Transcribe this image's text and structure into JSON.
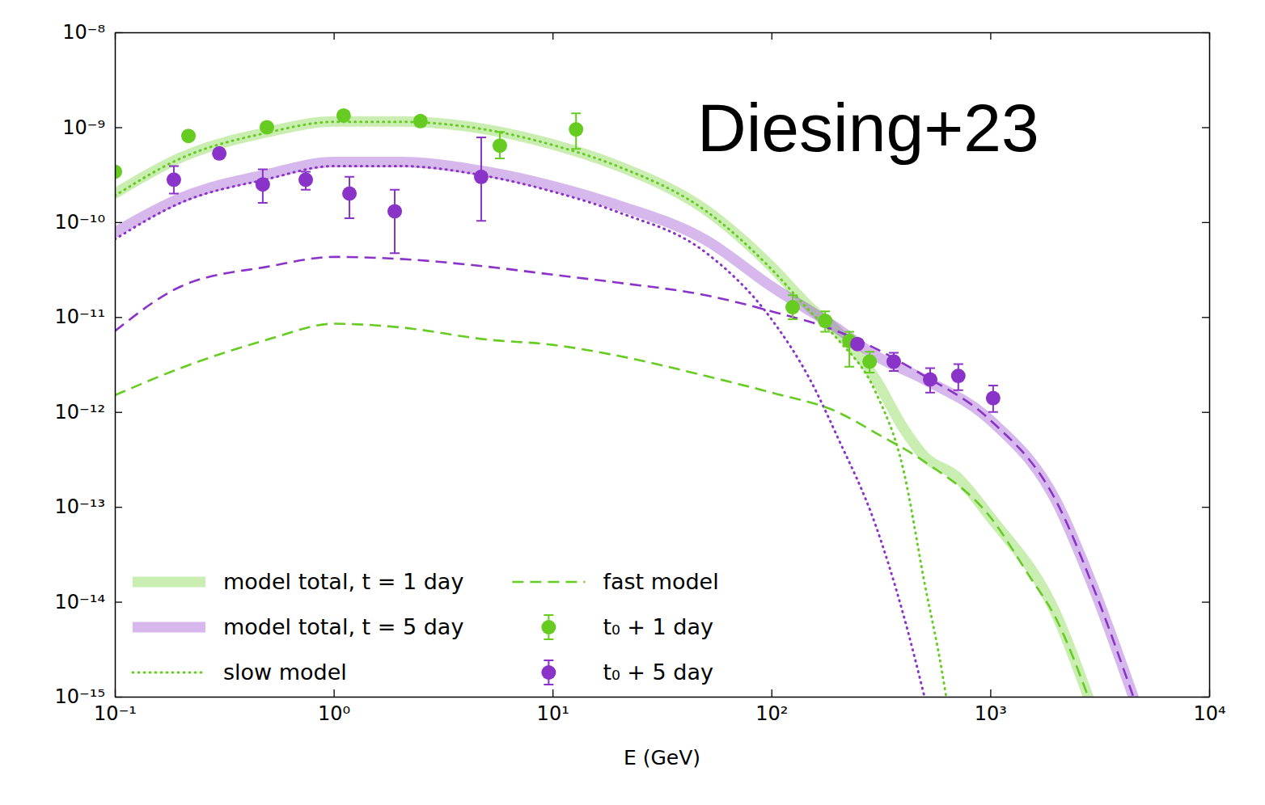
{
  "chart_data": {
    "type": "line",
    "annotations": [
      "Diesing+23"
    ],
    "x_label": "E (GeV)",
    "log": true,
    "xlim": [
      0.1,
      10000
    ],
    "ylim": [
      1e-15,
      1e-08
    ],
    "xticks": [
      {
        "value": 0.1,
        "label": "10⁻¹"
      },
      {
        "value": 1,
        "label": "10⁰"
      },
      {
        "value": 10,
        "label": "10¹"
      },
      {
        "value": 100,
        "label": "10²"
      },
      {
        "value": 1000,
        "label": "10³"
      },
      {
        "value": 10000,
        "label": "10⁴"
      }
    ],
    "yticks": [
      {
        "value": 1e-15,
        "label": "10⁻¹⁵"
      },
      {
        "value": 1e-14,
        "label": "10⁻¹⁴"
      },
      {
        "value": 1e-13,
        "label": "10⁻¹³"
      },
      {
        "value": 1e-12,
        "label": "10⁻¹²"
      },
      {
        "value": 1e-11,
        "label": "10⁻¹¹"
      },
      {
        "value": 1e-10,
        "label": "10⁻¹⁰"
      },
      {
        "value": 1e-09,
        "label": "10⁻⁹"
      },
      {
        "value": 1e-08,
        "label": "10⁻⁸"
      }
    ],
    "legend": "lower left",
    "series": [
      {
        "name": "model total, t = 1 day",
        "type": "band",
        "color": "#66cc22",
        "x": [
          0.1,
          0.2,
          0.5,
          1,
          2,
          5,
          10,
          20,
          50,
          100,
          150,
          200,
          300,
          400,
          500,
          700,
          1000,
          2000,
          2800
        ],
        "values": [
          2e-10,
          4.8e-10,
          8.9e-10,
          1.15e-09,
          1.15e-09,
          9.5e-10,
          6.6e-10,
          3.9e-10,
          1.35e-10,
          3.4e-11,
          1.27e-11,
          7.1e-12,
          2.2e-12,
          6.8e-13,
          3.4e-13,
          2.1e-13,
          7.8e-14,
          7.4e-15,
          1e-15
        ]
      },
      {
        "name": "model total, t = 5 day",
        "type": "band",
        "color": "#8a33c8",
        "x": [
          0.1,
          0.2,
          0.5,
          1,
          2,
          5,
          10,
          20,
          50,
          100,
          200,
          300,
          500,
          1000,
          2000,
          3000,
          4500
        ],
        "values": [
          7.8e-11,
          1.8e-10,
          3.2e-10,
          4.3e-10,
          4.3e-10,
          3.4e-10,
          2.4e-10,
          1.5e-10,
          6.5e-11,
          2.1e-11,
          7.6e-12,
          3.9e-12,
          2.2e-12,
          8.2e-13,
          1.15e-13,
          1.3e-14,
          1e-15
        ]
      },
      {
        "name": "slow model",
        "type": "line",
        "line_style": "dotted",
        "color": "#66cc22",
        "x": [
          0.1,
          0.2,
          0.5,
          1,
          2,
          5,
          10,
          20,
          50,
          100,
          150,
          200,
          300,
          400,
          500,
          600,
          650
        ],
        "values": [
          1.9e-10,
          4.7e-10,
          8.8e-10,
          1.14e-09,
          1.14e-09,
          9.4e-10,
          6.5e-10,
          3.85e-10,
          1.32e-10,
          3.2e-11,
          1.15e-11,
          5.9e-12,
          1.6e-12,
          2.5e-13,
          1.6e-14,
          1.9e-15,
          6e-16
        ]
      },
      {
        "type": "line",
        "line_style": "dotted",
        "color": "#8a33c8",
        "x": [
          0.1,
          0.2,
          0.5,
          1,
          2,
          5,
          10,
          20,
          50,
          100,
          150,
          200,
          300,
          400,
          500,
          550
        ],
        "values": [
          6.6e-11,
          1.6e-10,
          2.85e-10,
          3.9e-10,
          3.9e-10,
          3.05e-10,
          2.1e-10,
          1.27e-10,
          4.8e-11,
          9.5e-12,
          2.2e-12,
          5.5e-13,
          6.3e-14,
          7.4e-15,
          1e-15,
          4e-16
        ]
      },
      {
        "name": "fast model",
        "type": "line",
        "line_style": "dashed",
        "color": "#66cc22",
        "x": [
          0.1,
          0.2,
          0.5,
          1,
          2,
          5,
          10,
          20,
          50,
          100,
          200,
          300,
          500,
          1000,
          1500,
          2000,
          2800
        ],
        "values": [
          1.5e-12,
          2.9e-12,
          5.8e-12,
          8.5e-12,
          7.8e-12,
          5.8e-12,
          5.1e-12,
          3.9e-12,
          2.4e-12,
          1.6e-12,
          1e-12,
          6e-13,
          3e-13,
          7.8e-14,
          1.9e-14,
          6.6e-15,
          1e-15
        ]
      },
      {
        "type": "line",
        "line_style": "dashed",
        "color": "#8a33c8",
        "x": [
          0.1,
          0.2,
          0.5,
          1,
          2,
          5,
          10,
          20,
          50,
          100,
          200,
          500,
          1000,
          2000,
          3000,
          4500
        ],
        "values": [
          7.1e-12,
          2.1e-11,
          3.4e-11,
          4.3e-11,
          4.1e-11,
          3.4e-11,
          2.8e-11,
          2.3e-11,
          1.7e-11,
          1.15e-11,
          7.1e-12,
          2.4e-12,
          8.2e-13,
          1.15e-13,
          1.3e-14,
          1e-15
        ]
      },
      {
        "name": "t₀ + 1 day",
        "type": "scatter",
        "marker": "circle",
        "color": "#66cc22",
        "x": [
          0.1,
          0.217,
          0.495,
          1.11,
          2.49,
          5.74,
          12.8,
          125,
          176,
          227,
          281
        ],
        "values": [
          3.4e-10,
          8.1e-10,
          1e-09,
          1.33e-09,
          1.16e-09,
          6.4e-10,
          9.5e-10,
          1.27e-11,
          9.1e-12,
          5.6e-12,
          3.4e-12
        ],
        "y_low": [
          null,
          null,
          null,
          null,
          null,
          4.7e-10,
          5.9e-10,
          9.5e-12,
          7e-12,
          3e-12,
          2.6e-12
        ],
        "y_high": [
          null,
          null,
          null,
          null,
          null,
          8.9e-10,
          1.4e-09,
          1.7e-11,
          1.15e-11,
          7e-12,
          4.3e-12
        ]
      },
      {
        "name": "t₀ + 5 day",
        "type": "scatter",
        "marker": "circle",
        "color": "#8a33c8",
        "x": [
          0.186,
          0.3,
          0.474,
          0.745,
          1.18,
          1.9,
          4.72,
          247,
          362,
          531,
          714,
          1030
        ],
        "values": [
          2.8e-10,
          5.3e-10,
          2.5e-10,
          2.8e-10,
          2e-10,
          1.3e-10,
          3e-10,
          5.2e-12,
          3.4e-12,
          2.2e-12,
          2.4e-12,
          1.4e-12
        ],
        "y_low": [
          2e-10,
          null,
          1.6e-10,
          2.2e-10,
          1.1e-10,
          4.7e-11,
          1.03e-10,
          null,
          2.7e-12,
          1.6e-12,
          1.7e-12,
          1e-12
        ],
        "y_high": [
          3.9e-10,
          null,
          3.6e-10,
          3.4e-10,
          3e-10,
          2.2e-10,
          7.8e-10,
          null,
          4.2e-12,
          2.9e-12,
          3.2e-12,
          1.9e-12
        ]
      }
    ]
  }
}
